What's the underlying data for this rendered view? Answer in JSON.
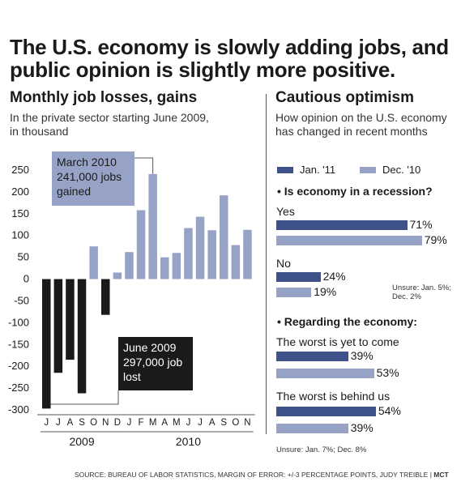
{
  "headline": "The U.S. economy is slowly adding jobs, and public opinion is slightly more positive.",
  "left_panel": {
    "title": "Monthly job losses, gains",
    "subtitle": "In the private sector starting June 2009, in thousand",
    "callout_top": {
      "line1": "March 2010",
      "line2": "241,000 jobs",
      "line3": "gained"
    },
    "callout_bottom": {
      "line1": "June 2009",
      "line2": "297,000 job",
      "line3": "lost"
    }
  },
  "right_panel": {
    "title": "Cautious optimism",
    "subtitle": "How opinion on the U.S. economy has changed in recent months",
    "legend": [
      {
        "label": "Jan. '11",
        "color": "#3e5289"
      },
      {
        "label": "Dec. '10",
        "color": "#96a3c6"
      }
    ],
    "questions": [
      {
        "heading": "• Is economy in a recession?",
        "options": [
          {
            "label": "Yes",
            "jan11": 71,
            "dec10": 79,
            "jan11_text": "71%",
            "dec10_text": "79%"
          },
          {
            "label": "No",
            "jan11": 24,
            "dec10": 19,
            "jan11_text": "24%",
            "dec10_text": "19%"
          }
        ],
        "note": "Unsure: Jan. 5%; Dec. 2%"
      },
      {
        "heading": "• Regarding the economy:",
        "options": [
          {
            "label": "The worst is yet to come",
            "jan11": 39,
            "dec10": 53,
            "jan11_text": "39%",
            "dec10_text": "53%"
          },
          {
            "label": "The worst is behind us",
            "jan11": 54,
            "dec10": 39,
            "jan11_text": "54%",
            "dec10_text": "39%"
          }
        ],
        "note": "Unsure: Jan. 7%; Dec. 8%"
      }
    ]
  },
  "footer": {
    "source": "SOURCE: BUREAU OF LABOR STATISTICS, MARGIN OF ERROR: +/-3 PERCENTAGE POINTS, JUDY TREIBLE |",
    "credit": "MCT"
  },
  "chart_data": {
    "type": "bar",
    "categories": [
      "J",
      "J",
      "A",
      "S",
      "O",
      "N",
      "D",
      "J",
      "F",
      "M",
      "A",
      "M",
      "J",
      "J",
      "A",
      "S",
      "O",
      "N"
    ],
    "years": [
      {
        "label": "2009",
        "months": 7
      },
      {
        "label": "2010",
        "months": 11
      }
    ],
    "values": [
      -297,
      -215,
      -185,
      -262,
      75,
      -82,
      15,
      62,
      158,
      241,
      50,
      60,
      117,
      143,
      112,
      192,
      78,
      113
    ],
    "colors": {
      "negative": "#1a1a1a",
      "positive": "#96a3c6"
    },
    "yticks": [
      250,
      200,
      150,
      100,
      50,
      0,
      -50,
      -100,
      -150,
      -200,
      -250,
      -300
    ],
    "ylim": [
      -300,
      250
    ],
    "title": "Monthly job losses, gains",
    "xlabel": "",
    "ylabel": "",
    "grid": false
  }
}
